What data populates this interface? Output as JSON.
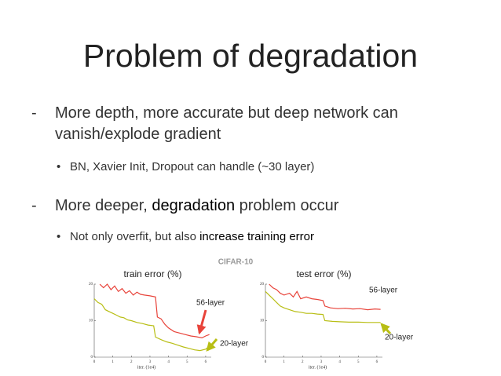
{
  "title": "Problem of degradation",
  "bullets": [
    {
      "dash": "-",
      "parts": [
        "More depth, more accurate but deep network can vanish/explode gradient"
      ],
      "sub": [
        {
          "dot": "•",
          "parts": [
            "BN, Xavier Init, Dropout can handle (~30 layer)"
          ]
        }
      ]
    },
    {
      "dash": "-",
      "parts": [
        "More deeper, ",
        "degradation",
        " problem occur"
      ],
      "sub": [
        {
          "dot": "•",
          "parts": [
            "Not only overfit, but also ",
            "increase training error"
          ]
        }
      ]
    }
  ],
  "figure_title": "CIFAR-10",
  "chart_data": [
    {
      "type": "line",
      "title": "train error (%)",
      "x_label": "iter. (1e4)",
      "xlim": [
        0,
        6.3
      ],
      "xticks": [
        0,
        1,
        2,
        3,
        4,
        5,
        6
      ],
      "ylim": [
        0,
        20
      ],
      "yticks": [
        0,
        10,
        20
      ],
      "annotations": [
        "56-layer",
        "20-layer"
      ],
      "series": [
        {
          "name": "56-layer",
          "color": "#e8433a",
          "x": [
            0.3,
            0.5,
            0.7,
            0.9,
            1.1,
            1.3,
            1.5,
            1.7,
            1.9,
            2.1,
            2.3,
            2.5,
            2.7,
            3.0,
            3.3,
            3.4,
            3.6,
            3.8,
            4.0,
            4.3,
            4.6,
            4.9,
            5.2,
            5.5,
            5.8,
            6.0,
            6.2
          ],
          "values": [
            20,
            19,
            20,
            18.5,
            19.5,
            18,
            18.8,
            17.5,
            18.2,
            17,
            17.8,
            17.2,
            17,
            16.8,
            16.5,
            11,
            10.5,
            9,
            8,
            7,
            6.6,
            6.2,
            5.8,
            5.6,
            5.3,
            5.8,
            6.2
          ]
        },
        {
          "name": "20-layer",
          "color": "#b8be14",
          "x": [
            0,
            0.2,
            0.4,
            0.6,
            0.8,
            1.0,
            1.2,
            1.4,
            1.6,
            1.8,
            2.0,
            2.3,
            2.6,
            2.9,
            3.2,
            3.3,
            3.6,
            3.9,
            4.2,
            4.5,
            4.8,
            5.1,
            5.4,
            5.7,
            6.0,
            6.2
          ],
          "values": [
            16,
            15,
            14.5,
            13,
            12.5,
            12,
            11.5,
            11,
            10.8,
            10.2,
            10,
            9.5,
            9.2,
            8.8,
            8.6,
            5.5,
            4.8,
            4.2,
            3.8,
            3.3,
            2.8,
            2.4,
            2,
            1.8,
            2.2,
            3
          ]
        }
      ]
    },
    {
      "type": "line",
      "title": "test error (%)",
      "x_label": "iter. (1e4)",
      "xlim": [
        0,
        6.3
      ],
      "xticks": [
        0,
        1,
        2,
        3,
        4,
        5,
        6
      ],
      "ylim": [
        0,
        20
      ],
      "yticks": [
        0,
        10,
        20
      ],
      "annotations": [
        "56-layer",
        "20-layer"
      ],
      "series": [
        {
          "name": "56-layer",
          "color": "#e8433a",
          "x": [
            0.2,
            0.4,
            0.6,
            0.8,
            1.0,
            1.3,
            1.5,
            1.7,
            1.9,
            2.2,
            2.5,
            2.8,
            3.1,
            3.2,
            3.5,
            3.9,
            4.3,
            4.7,
            5.1,
            5.5,
            5.9,
            6.2
          ],
          "values": [
            20,
            19,
            18.5,
            17.5,
            17,
            17.5,
            16.5,
            18,
            16,
            16.5,
            16,
            15.8,
            15.5,
            14,
            13.5,
            13.3,
            13.4,
            13.2,
            13.3,
            13,
            13.2,
            13.1
          ]
        },
        {
          "name": "20-layer",
          "color": "#b8be14",
          "x": [
            0,
            0.2,
            0.4,
            0.6,
            0.8,
            1.0,
            1.3,
            1.6,
            1.9,
            2.2,
            2.5,
            2.8,
            3.1,
            3.2,
            3.6,
            4.0,
            4.5,
            5.0,
            5.5,
            6.0,
            6.2
          ],
          "values": [
            18,
            17,
            16,
            15,
            14,
            13.5,
            13,
            12.5,
            12.3,
            12,
            12,
            11.8,
            11.7,
            10,
            9.8,
            9.7,
            9.6,
            9.6,
            9.5,
            9.5,
            9.5
          ]
        }
      ]
    }
  ]
}
